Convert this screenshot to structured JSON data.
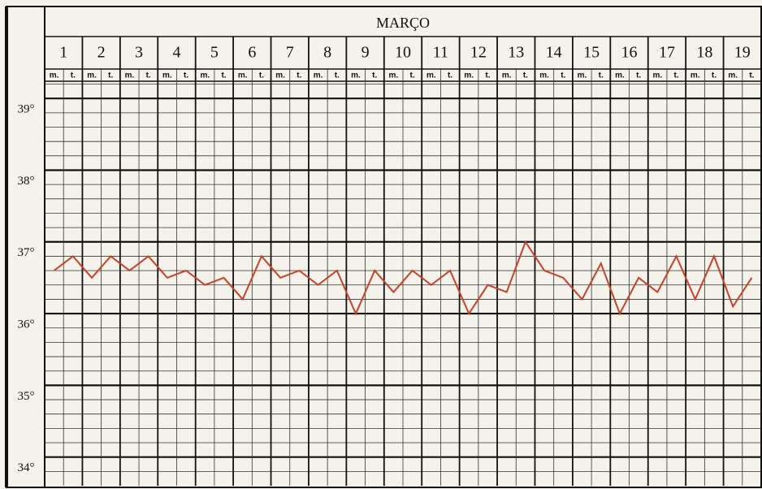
{
  "chart_data": {
    "type": "line",
    "title": "MARÇO",
    "days": [
      1,
      2,
      3,
      4,
      5,
      6,
      7,
      8,
      9,
      10,
      11,
      12,
      13,
      14,
      15,
      16,
      17,
      18,
      19
    ],
    "categories": [
      "m.",
      "t.",
      "m.",
      "t.",
      "m.",
      "t.",
      "m.",
      "t.",
      "m.",
      "t.",
      "m.",
      "t.",
      "m.",
      "t.",
      "m.",
      "t.",
      "m.",
      "t.",
      "m.",
      "t.",
      "m.",
      "t.",
      "m.",
      "t.",
      "m.",
      "t.",
      "m.",
      "t.",
      "m.",
      "t.",
      "m.",
      "t.",
      "m.",
      "t.",
      "m.",
      "t.",
      "m.",
      "t."
    ],
    "series": [
      {
        "color": "#c8412a",
        "values": [
          36.6,
          36.8,
          36.5,
          36.8,
          36.6,
          36.8,
          36.5,
          36.6,
          36.4,
          36.5,
          36.2,
          36.8,
          36.5,
          36.6,
          36.4,
          36.6,
          36.0,
          36.6,
          36.3,
          36.6,
          36.4,
          36.6,
          36.0,
          36.4,
          36.3,
          37.0,
          36.6,
          36.5,
          36.2,
          36.7,
          36.0,
          36.5,
          36.3,
          36.8,
          36.2,
          36.8,
          36.1,
          36.5
        ]
      }
    ],
    "ylim": [
      33.6,
      39.24
    ],
    "yticks": [
      {
        "value": 39,
        "label": "39°"
      },
      {
        "value": 38,
        "label": "38°"
      },
      {
        "value": 37,
        "label": "37°"
      },
      {
        "value": 36,
        "label": "36°"
      },
      {
        "value": 35,
        "label": "35°"
      },
      {
        "value": 34,
        "label": "34°"
      }
    ],
    "grid": true
  }
}
